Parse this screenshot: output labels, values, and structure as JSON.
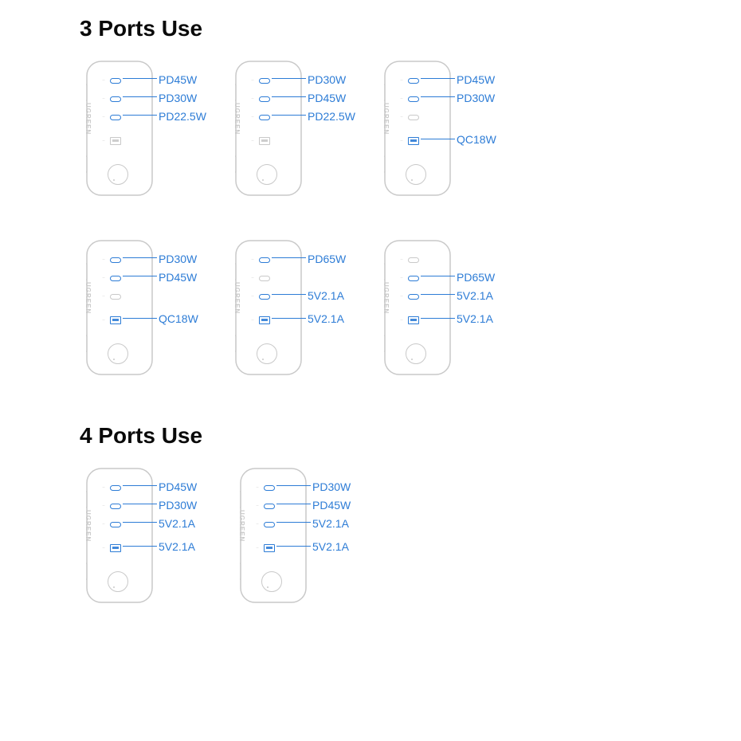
{
  "brand_text": "UGREEN",
  "colors": {
    "accent": "#2d7cd6",
    "outline": "#c9c9c9",
    "text": "#0a0a0a",
    "bg": "#ffffff"
  },
  "sections": [
    {
      "title": "3 Ports Use",
      "chargers": [
        {
          "ports": [
            {
              "type": "c",
              "active": true,
              "label": "PD45W"
            },
            {
              "type": "c",
              "active": true,
              "label": "PD30W"
            },
            {
              "type": "c",
              "active": true,
              "label": "PD22.5W"
            },
            {
              "type": "a",
              "active": false,
              "label": ""
            }
          ]
        },
        {
          "ports": [
            {
              "type": "c",
              "active": true,
              "label": "PD30W"
            },
            {
              "type": "c",
              "active": true,
              "label": "PD45W"
            },
            {
              "type": "c",
              "active": true,
              "label": "PD22.5W"
            },
            {
              "type": "a",
              "active": false,
              "label": ""
            }
          ]
        },
        {
          "ports": [
            {
              "type": "c",
              "active": true,
              "label": "PD45W"
            },
            {
              "type": "c",
              "active": true,
              "label": "PD30W"
            },
            {
              "type": "c",
              "active": false,
              "label": ""
            },
            {
              "type": "a",
              "active": true,
              "label": "QC18W"
            }
          ]
        },
        {
          "ports": [
            {
              "type": "c",
              "active": true,
              "label": "PD30W"
            },
            {
              "type": "c",
              "active": true,
              "label": "PD45W"
            },
            {
              "type": "c",
              "active": false,
              "label": ""
            },
            {
              "type": "a",
              "active": true,
              "label": "QC18W"
            }
          ]
        },
        {
          "ports": [
            {
              "type": "c",
              "active": true,
              "label": "PD65W"
            },
            {
              "type": "c",
              "active": false,
              "label": ""
            },
            {
              "type": "c",
              "active": true,
              "label": "5V2.1A"
            },
            {
              "type": "a",
              "active": true,
              "label": "5V2.1A"
            }
          ]
        },
        {
          "ports": [
            {
              "type": "c",
              "active": false,
              "label": ""
            },
            {
              "type": "c",
              "active": true,
              "label": "PD65W"
            },
            {
              "type": "c",
              "active": true,
              "label": "5V2.1A"
            },
            {
              "type": "a",
              "active": true,
              "label": "5V2.1A"
            }
          ]
        }
      ]
    },
    {
      "title": "4 Ports Use",
      "chargers": [
        {
          "ports": [
            {
              "type": "c",
              "active": true,
              "label": "PD45W"
            },
            {
              "type": "c",
              "active": true,
              "label": "PD30W"
            },
            {
              "type": "c",
              "active": true,
              "label": "5V2.1A"
            },
            {
              "type": "a",
              "active": true,
              "label": "5V2.1A"
            }
          ]
        },
        {
          "ports": [
            {
              "type": "c",
              "active": true,
              "label": "PD30W"
            },
            {
              "type": "c",
              "active": true,
              "label": "PD45W"
            },
            {
              "type": "c",
              "active": true,
              "label": "5V2.1A"
            },
            {
              "type": "a",
              "active": true,
              "label": "5V2.1A"
            }
          ]
        }
      ]
    }
  ]
}
